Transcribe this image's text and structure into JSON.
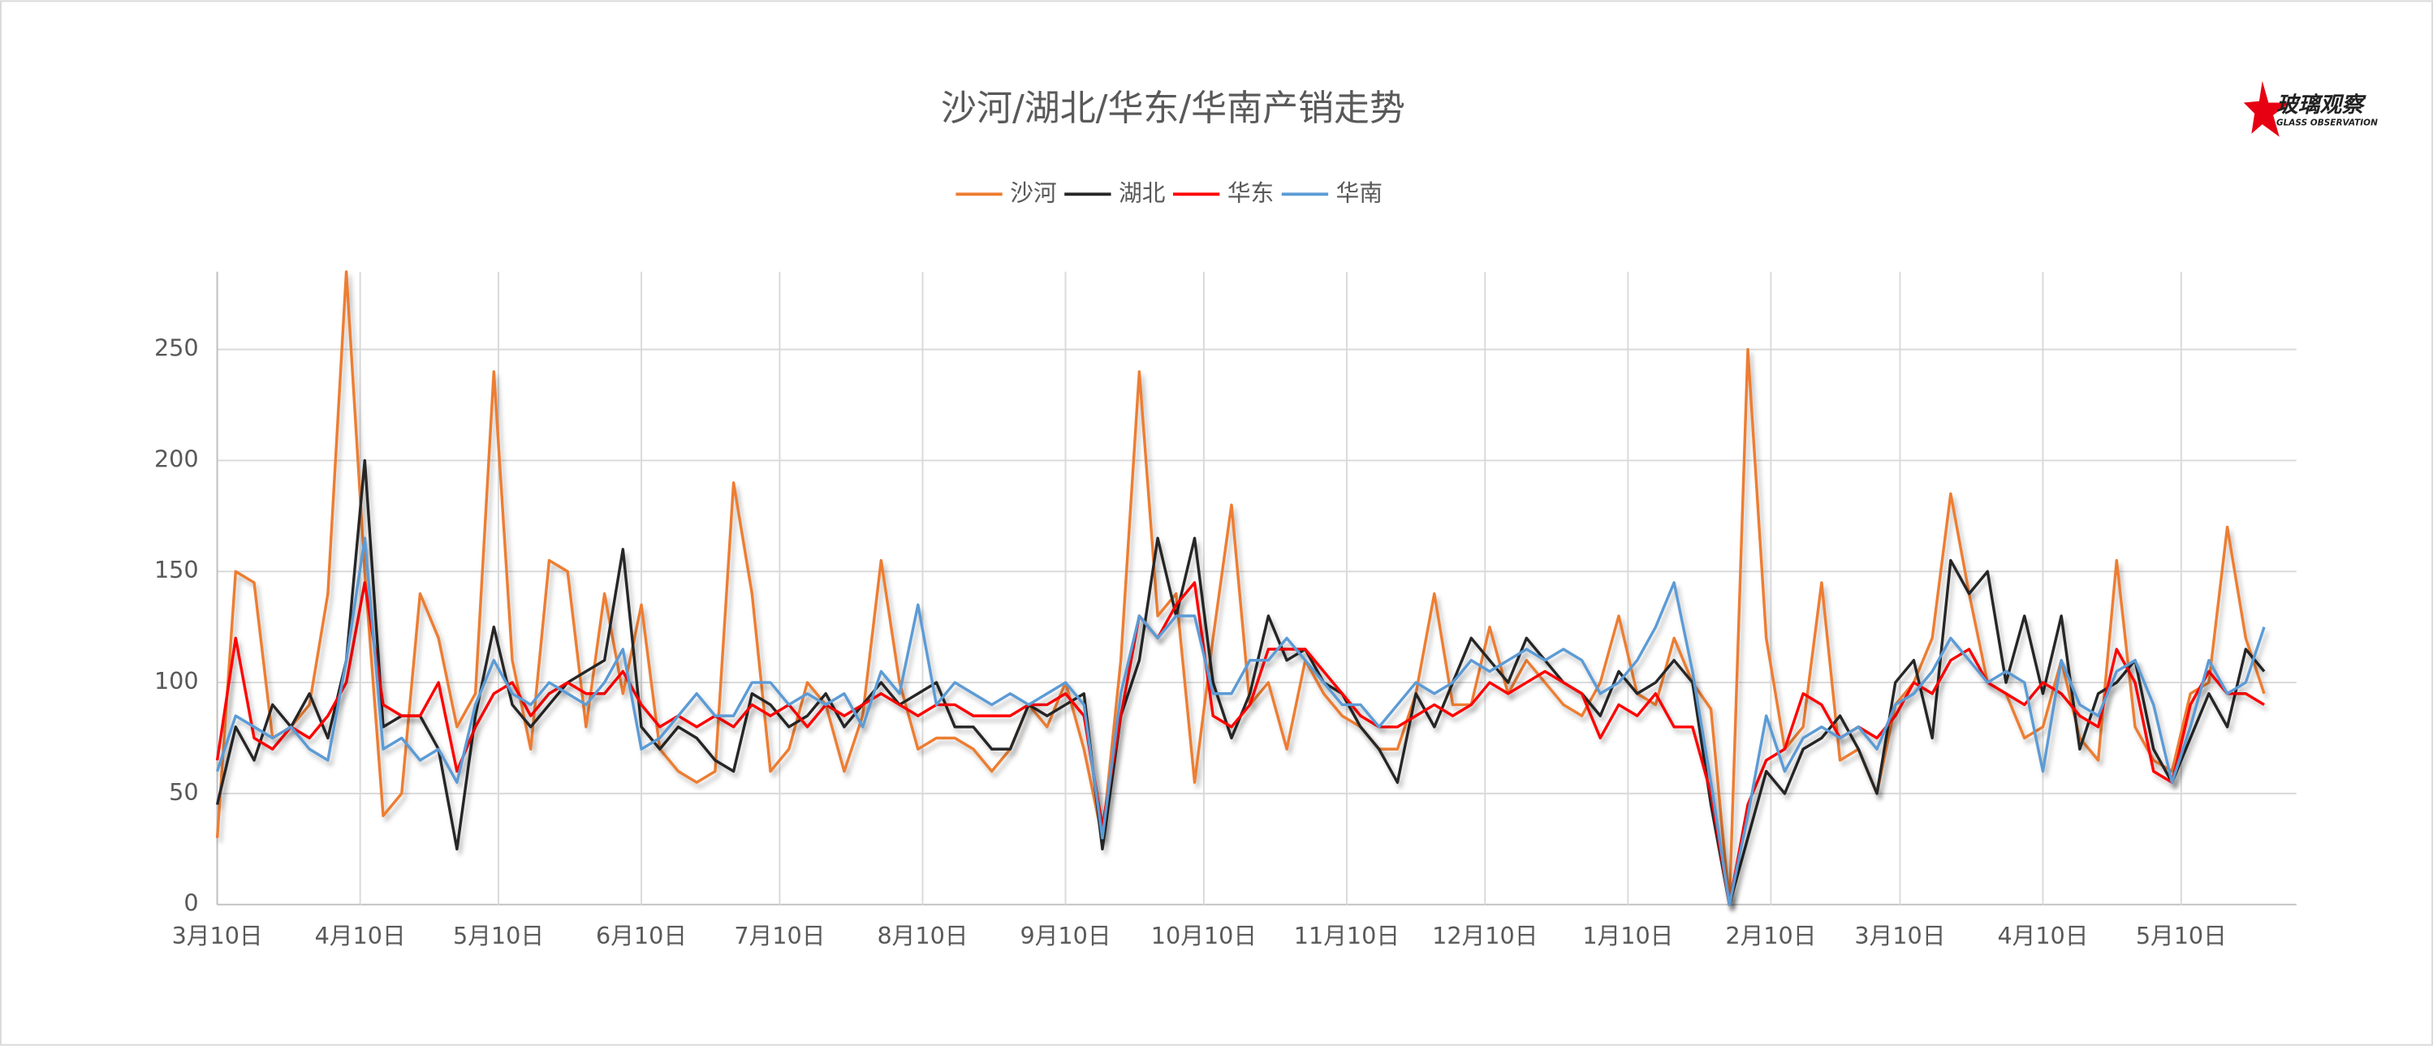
{
  "chart_data": {
    "type": "line",
    "title": "沙河/湖北/华东/华南产销走势",
    "logo": {
      "name": "玻璃观察",
      "subtitle": "GLASS OBSERVATION"
    },
    "x": [
      0,
      4,
      8,
      12,
      16,
      20,
      24,
      28,
      32,
      36,
      40,
      44,
      48,
      52,
      56,
      60,
      64,
      68,
      72,
      76,
      80,
      84,
      88,
      92,
      96,
      100,
      104,
      108,
      112,
      116,
      120,
      124,
      128,
      132,
      136,
      140,
      144,
      148,
      152,
      156,
      160,
      164,
      168,
      172,
      176,
      180,
      184,
      188,
      192,
      196,
      200,
      204,
      208,
      212,
      216,
      220,
      224,
      228,
      232,
      236,
      240,
      244,
      248,
      252,
      256,
      260,
      264,
      268,
      272,
      276,
      280,
      284,
      288,
      292,
      296,
      300,
      304,
      308,
      312,
      316,
      320,
      324,
      328,
      332,
      336,
      340,
      344,
      348,
      352,
      356,
      360,
      364,
      368,
      372,
      376,
      380,
      384,
      388,
      392,
      396,
      400,
      404,
      408,
      412,
      416,
      420,
      424,
      428,
      432,
      436,
      440,
      444
    ],
    "xlim": [
      0,
      451
    ],
    "xticks": [
      {
        "value": 0,
        "label": "3月10日"
      },
      {
        "value": 31,
        "label": "4月10日"
      },
      {
        "value": 61,
        "label": "5月10日"
      },
      {
        "value": 92,
        "label": "6月10日"
      },
      {
        "value": 122,
        "label": "7月10日"
      },
      {
        "value": 153,
        "label": "8月10日"
      },
      {
        "value": 184,
        "label": "9月10日"
      },
      {
        "value": 214,
        "label": "10月10日"
      },
      {
        "value": 245,
        "label": "11月10日"
      },
      {
        "value": 275,
        "label": "12月10日"
      },
      {
        "value": 306,
        "label": "1月10日"
      },
      {
        "value": 337,
        "label": "2月10日"
      },
      {
        "value": 365,
        "label": "3月10日"
      },
      {
        "value": 396,
        "label": "4月10日"
      },
      {
        "value": 426,
        "label": "5月10日"
      }
    ],
    "ylim": [
      0,
      285
    ],
    "yticks": [
      0,
      50,
      100,
      150,
      200,
      250
    ],
    "grid": true,
    "legend": "top",
    "series": [
      {
        "name": "沙河",
        "color": "#ed7d31",
        "values": [
          30,
          150,
          145,
          75,
          80,
          90,
          140,
          285,
          150,
          40,
          50,
          140,
          120,
          80,
          95,
          240,
          110,
          70,
          155,
          150,
          80,
          140,
          95,
          135,
          70,
          60,
          55,
          60,
          190,
          140,
          60,
          70,
          100,
          90,
          60,
          85,
          155,
          100,
          70,
          75,
          75,
          70,
          60,
          70,
          90,
          80,
          100,
          70,
          30,
          110,
          240,
          130,
          140,
          55,
          120,
          180,
          90,
          100,
          70,
          110,
          95,
          85,
          80,
          70,
          70,
          95,
          140,
          90,
          90,
          125,
          95,
          110,
          100,
          90,
          85,
          100,
          130,
          95,
          90,
          120,
          100,
          88,
          0,
          250,
          120,
          70,
          80,
          145,
          65,
          70,
          50,
          90,
          100,
          120,
          185,
          140,
          100,
          95,
          75,
          80,
          110,
          75,
          65,
          155,
          80,
          65,
          60,
          95,
          100,
          170,
          120,
          95
        ]
      },
      {
        "name": "湖北",
        "color": "#262626",
        "values": [
          45,
          80,
          65,
          90,
          80,
          95,
          75,
          110,
          200,
          80,
          85,
          85,
          70,
          25,
          85,
          125,
          90,
          80,
          90,
          100,
          105,
          110,
          160,
          80,
          70,
          80,
          75,
          65,
          60,
          95,
          90,
          80,
          85,
          95,
          80,
          90,
          100,
          90,
          95,
          100,
          80,
          80,
          70,
          70,
          90,
          85,
          90,
          95,
          25,
          85,
          110,
          165,
          130,
          165,
          100,
          75,
          95,
          130,
          110,
          115,
          100,
          95,
          80,
          70,
          55,
          95,
          80,
          100,
          120,
          110,
          100,
          120,
          110,
          100,
          95,
          85,
          105,
          95,
          100,
          110,
          100,
          45,
          0,
          30,
          60,
          50,
          70,
          75,
          85,
          70,
          50,
          100,
          110,
          75,
          155,
          140,
          150,
          100,
          130,
          95,
          130,
          70,
          95,
          100,
          110,
          70,
          55,
          75,
          95,
          80,
          115,
          105
        ]
      },
      {
        "name": "华东",
        "color": "#ff0000",
        "values": [
          65,
          120,
          75,
          70,
          80,
          75,
          85,
          100,
          145,
          90,
          85,
          85,
          100,
          60,
          80,
          95,
          100,
          85,
          95,
          100,
          95,
          95,
          105,
          90,
          80,
          85,
          80,
          85,
          80,
          90,
          85,
          90,
          80,
          90,
          85,
          90,
          95,
          90,
          85,
          90,
          90,
          85,
          85,
          85,
          90,
          90,
          95,
          85,
          35,
          85,
          130,
          120,
          135,
          145,
          85,
          80,
          90,
          115,
          115,
          115,
          105,
          95,
          85,
          80,
          80,
          85,
          90,
          85,
          90,
          100,
          95,
          100,
          105,
          100,
          95,
          75,
          90,
          85,
          95,
          80,
          80,
          50,
          0,
          45,
          65,
          70,
          95,
          90,
          75,
          80,
          75,
          85,
          100,
          95,
          110,
          115,
          100,
          95,
          90,
          100,
          95,
          85,
          80,
          115,
          100,
          60,
          55,
          90,
          105,
          95,
          95,
          90
        ]
      },
      {
        "name": "华南",
        "color": "#5b9bd5",
        "values": [
          60,
          85,
          80,
          75,
          80,
          70,
          65,
          110,
          165,
          70,
          75,
          65,
          70,
          55,
          90,
          110,
          95,
          90,
          100,
          95,
          90,
          100,
          115,
          70,
          75,
          85,
          95,
          85,
          85,
          100,
          100,
          90,
          95,
          90,
          95,
          80,
          105,
          95,
          135,
          90,
          100,
          95,
          90,
          95,
          90,
          95,
          100,
          90,
          30,
          95,
          130,
          120,
          130,
          130,
          95,
          95,
          110,
          110,
          120,
          110,
          100,
          90,
          90,
          80,
          90,
          100,
          95,
          100,
          110,
          105,
          110,
          115,
          110,
          115,
          110,
          95,
          100,
          110,
          125,
          145,
          105,
          55,
          0,
          40,
          85,
          60,
          75,
          80,
          75,
          80,
          70,
          90,
          95,
          105,
          120,
          110,
          100,
          105,
          100,
          60,
          110,
          90,
          85,
          105,
          110,
          90,
          55,
          80,
          110,
          95,
          100,
          125
        ]
      }
    ]
  }
}
